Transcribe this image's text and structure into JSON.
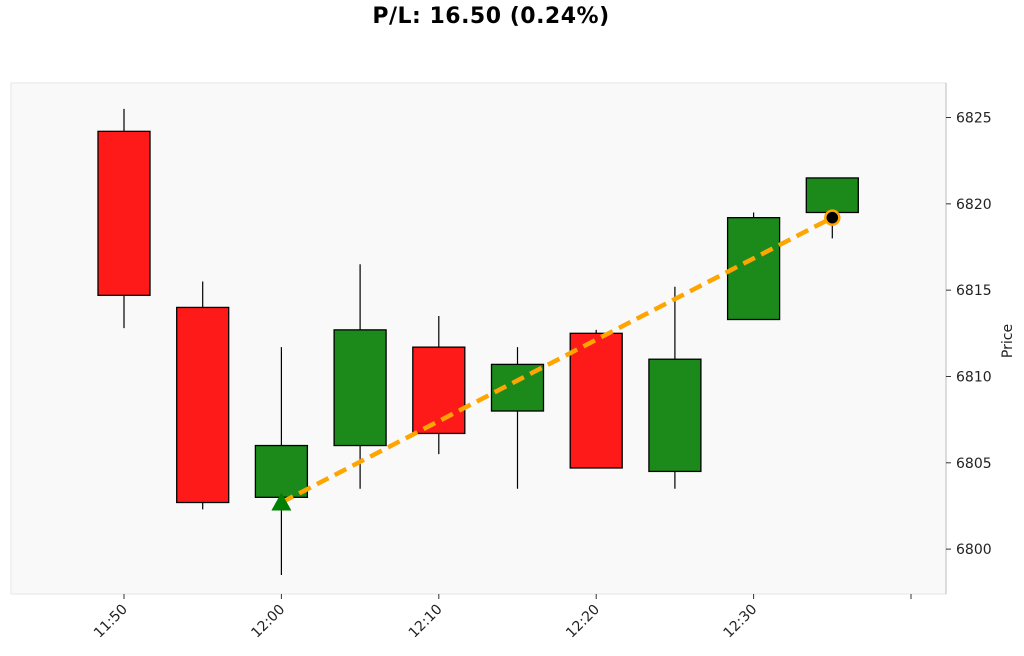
{
  "chart_data": {
    "type": "candlestick",
    "title": "P/L: 16.50 (0.24%)",
    "ylabel": "Price",
    "xlabel": "",
    "ylim": [
      6797.4,
      6827.0
    ],
    "y_ticks": [
      6800,
      6805,
      6810,
      6815,
      6820,
      6825
    ],
    "x_tick_labels": [
      "11:50",
      "12:00",
      "12:10",
      "12:20",
      "12:30",
      ""
    ],
    "grid": false,
    "colors": {
      "up": "#1b8a1b",
      "down": "#ff1a1a",
      "trade_line": "#ffa500",
      "entry_marker": "#008000",
      "exit_marker": "#000000",
      "background": "#f9f9f9"
    },
    "candles": [
      {
        "time": "11:50",
        "open": 6824.2,
        "high": 6825.5,
        "low": 6812.8,
        "close": 6814.7
      },
      {
        "time": "11:55",
        "open": 6814.0,
        "high": 6815.5,
        "low": 6802.3,
        "close": 6802.7
      },
      {
        "time": "12:00",
        "open": 6803.0,
        "high": 6811.7,
        "low": 6798.5,
        "close": 6806.0
      },
      {
        "time": "12:05",
        "open": 6806.0,
        "high": 6816.5,
        "low": 6803.5,
        "close": 6812.7
      },
      {
        "time": "12:10",
        "open": 6811.7,
        "high": 6813.5,
        "low": 6805.5,
        "close": 6806.7
      },
      {
        "time": "12:15",
        "open": 6808.0,
        "high": 6811.7,
        "low": 6803.5,
        "close": 6810.7
      },
      {
        "time": "12:20",
        "open": 6812.5,
        "high": 6812.7,
        "low": 6804.7,
        "close": 6804.7
      },
      {
        "time": "12:25",
        "open": 6804.5,
        "high": 6815.2,
        "low": 6803.5,
        "close": 6811.0
      },
      {
        "time": "12:30",
        "open": 6813.3,
        "high": 6819.5,
        "low": 6813.3,
        "close": 6819.2
      },
      {
        "time": "12:35",
        "open": 6819.5,
        "high": 6821.5,
        "low": 6818.0,
        "close": 6821.5
      }
    ],
    "trade": {
      "entry": {
        "time": "12:00",
        "price": 6802.7
      },
      "exit": {
        "time": "12:35",
        "price": 6819.2
      }
    }
  }
}
